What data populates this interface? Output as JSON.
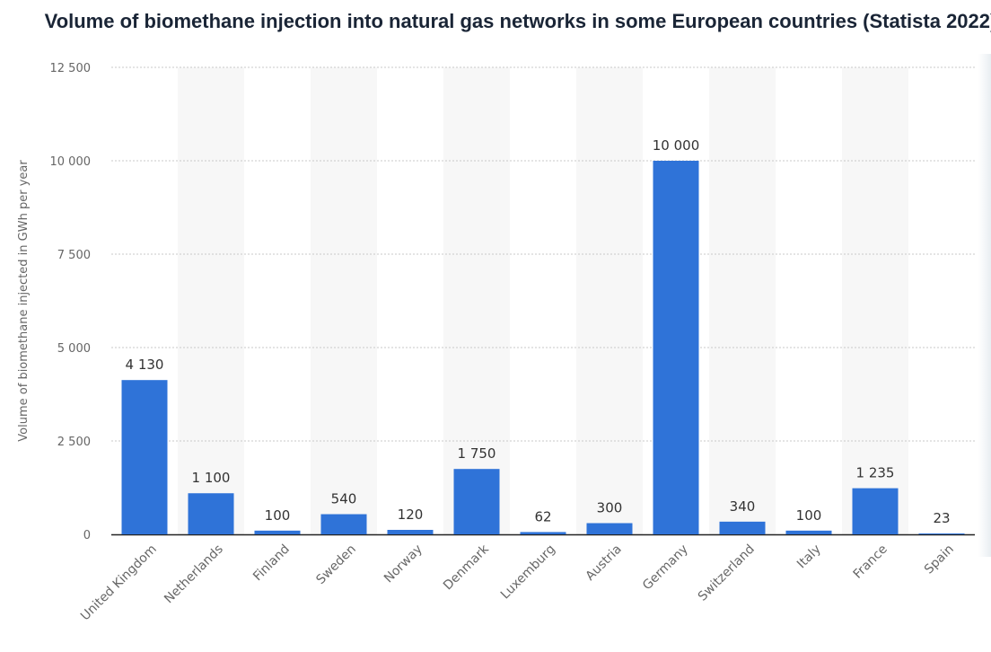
{
  "chart_data": {
    "type": "bar",
    "title": "Volume of biomethane injection into natural gas networks in some European countries (Statista 2022)",
    "ylabel": "Volume of biomethane injected in GWh per year",
    "xlabel": "",
    "ylim": [
      0,
      12500
    ],
    "yticks": [
      0,
      2500,
      5000,
      7500,
      10000,
      12500
    ],
    "ytick_labels": [
      "0",
      "2 500",
      "5 000",
      "7 500",
      "10 000",
      "12 500"
    ],
    "categories": [
      "United Kingdom",
      "Netherlands",
      "Finland",
      "Sweden",
      "Norway",
      "Denmark",
      "Luxemburg",
      "Austria",
      "Germany",
      "Switzerland",
      "Italy",
      "France",
      "Spain"
    ],
    "values": [
      4130,
      1100,
      100,
      540,
      120,
      1750,
      62,
      300,
      10000,
      340,
      100,
      1235,
      23
    ],
    "value_labels": [
      "4 130",
      "1 100",
      "100",
      "540",
      "120",
      "1 750",
      "62",
      "300",
      "10 000",
      "340",
      "100",
      "1 235",
      "23"
    ],
    "bar_color": "#2f73d8",
    "alt_band_color": "#f7f7f7",
    "grid": true,
    "legend": "none"
  }
}
